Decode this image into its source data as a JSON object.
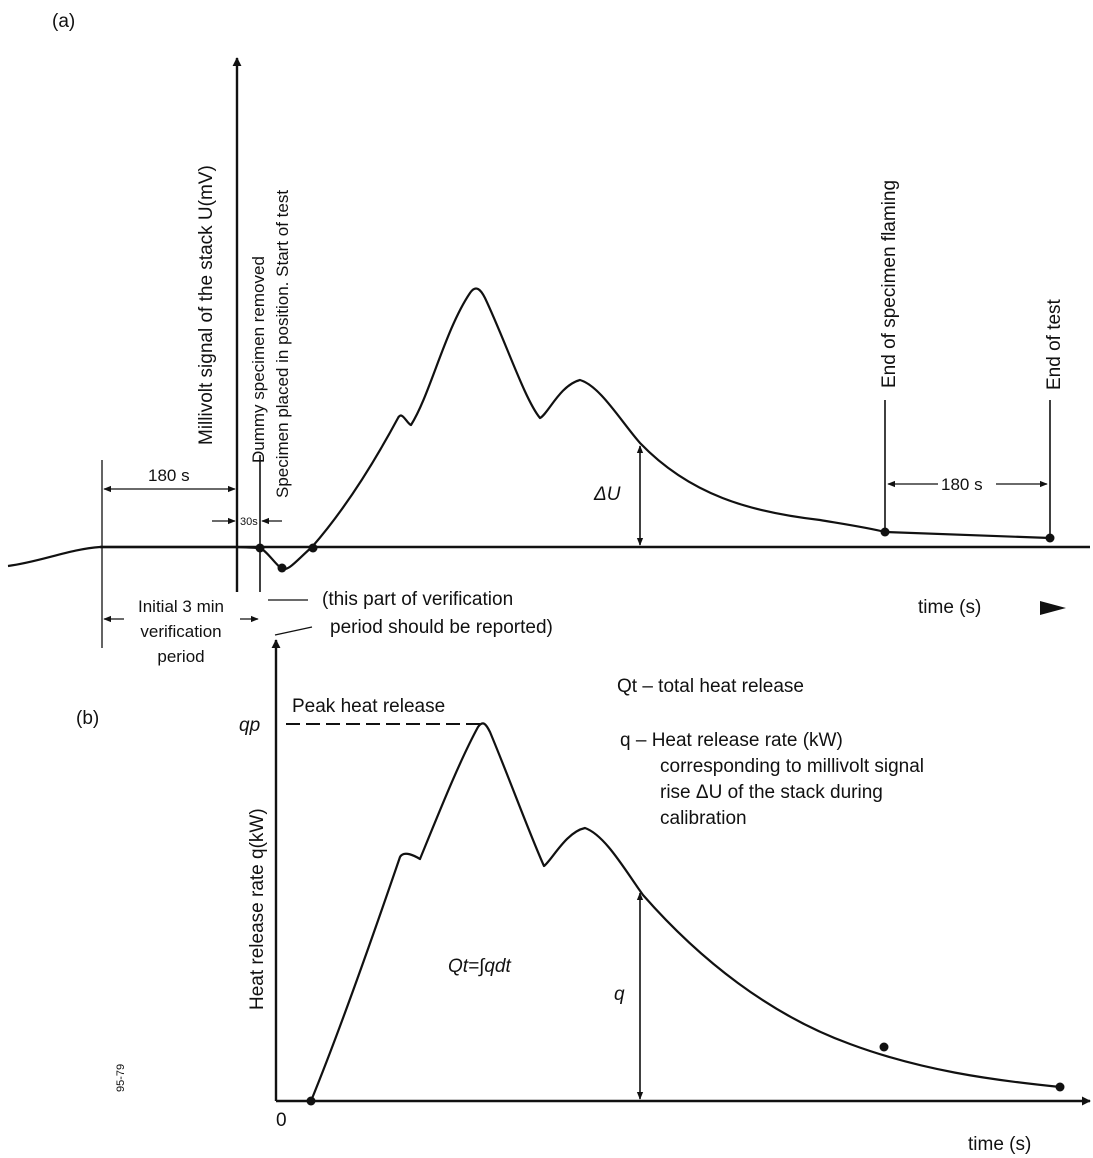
{
  "panel_a": {
    "tag": "(a)",
    "y_axis_label": "Millivolt signal of the stack U(mV)",
    "x_axis_label": "time (s)",
    "marker_dummy_removed": "Dummy specimen removed",
    "marker_specimen_placed": "Specimen placed in position. Start of test",
    "marker_end_flaming": "End of specimen flaming",
    "marker_end_test": "End of test",
    "dim_180s_left": "180 s",
    "dim_30s": "30s",
    "dim_180s_right": "180 s",
    "delta_u": "ΔU",
    "verification_line1": "Initial 3 min",
    "verification_line2": "verification",
    "verification_line3": "period",
    "report_note_line1": "(this part of verification",
    "report_note_line2": "period should be reported)"
  },
  "panel_b": {
    "tag": "(b)",
    "y_axis_label": "Heat release rate q(kW)",
    "x_axis_label": "time (s)",
    "origin": "0",
    "peak_label": "Peak heat release",
    "qp_label": "qp",
    "integral_label": "Qt=∫qdt",
    "q_label": "q",
    "legend_qt": "Qt – total heat release",
    "legend_q_line1": "q  – Heat release rate (kW)",
    "legend_q_line2": "corresponding to millivolt signal",
    "legend_q_line3": "rise ΔU of the stack during",
    "legend_q_line4": "calibration",
    "figure_code": "95-79"
  },
  "colors": {
    "ink": "#111111",
    "paper": "#ffffff"
  }
}
